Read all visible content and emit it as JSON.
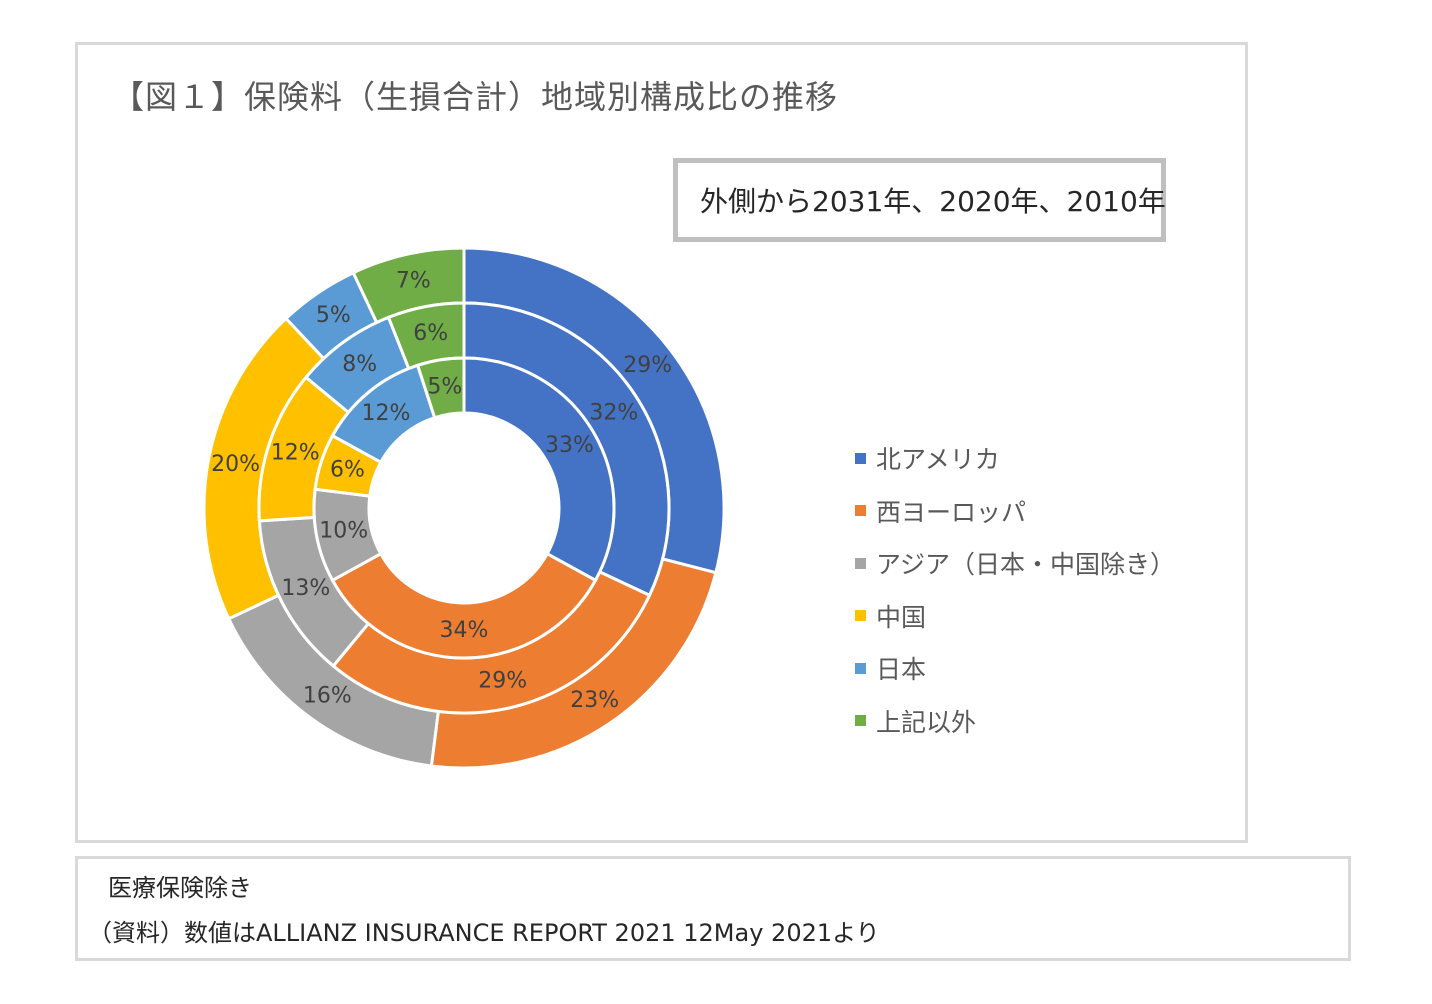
{
  "title": "【図１】保険料（生損合計）地域別構成比の推移",
  "ring_note": "外側から2031年、2020年、2010年",
  "colors": {
    "north_america": "#4472C4",
    "western_europe": "#ED7D31",
    "asia_ex": "#A5A5A5",
    "china": "#FFC000",
    "japan": "#5B9BD5",
    "other": "#70AD47"
  },
  "chart_data": {
    "type": "donut",
    "categories": [
      "北アメリカ",
      "西ヨーロッパ",
      "アジア（日本・中国除き）",
      "中国",
      "日本",
      "上記以外"
    ],
    "series": [
      {
        "values": [
          29,
          23,
          16,
          20,
          5,
          7
        ],
        "labels": [
          "29%",
          "23%",
          "16%",
          "20%",
          "5%",
          "7%"
        ]
      },
      {
        "values": [
          32,
          29,
          13,
          12,
          8,
          6
        ],
        "labels": [
          "32%",
          "29%",
          "13%",
          "12%",
          "8%",
          "6%"
        ]
      },
      {
        "values": [
          33,
          34,
          10,
          6,
          12,
          5
        ],
        "labels": [
          "33%",
          "34%",
          "10%",
          "6%",
          "12%",
          "5%"
        ]
      }
    ],
    "legend_position": "right"
  },
  "legend": [
    {
      "label": "北アメリカ",
      "color": "#4472C4"
    },
    {
      "label": "西ヨーロッパ",
      "color": "#ED7D31"
    },
    {
      "label": "アジア（日本・中国除き）",
      "color": "#A5A5A5"
    },
    {
      "label": "中国",
      "color": "#FFC000"
    },
    {
      "label": "日本",
      "color": "#5B9BD5"
    },
    {
      "label": "上記以外",
      "color": "#70AD47"
    }
  ],
  "notes": {
    "line1": "医療保険除き",
    "line2": "（資料）数値はALLIANZ INSURANCE REPORT 2021  12May 2021より"
  }
}
